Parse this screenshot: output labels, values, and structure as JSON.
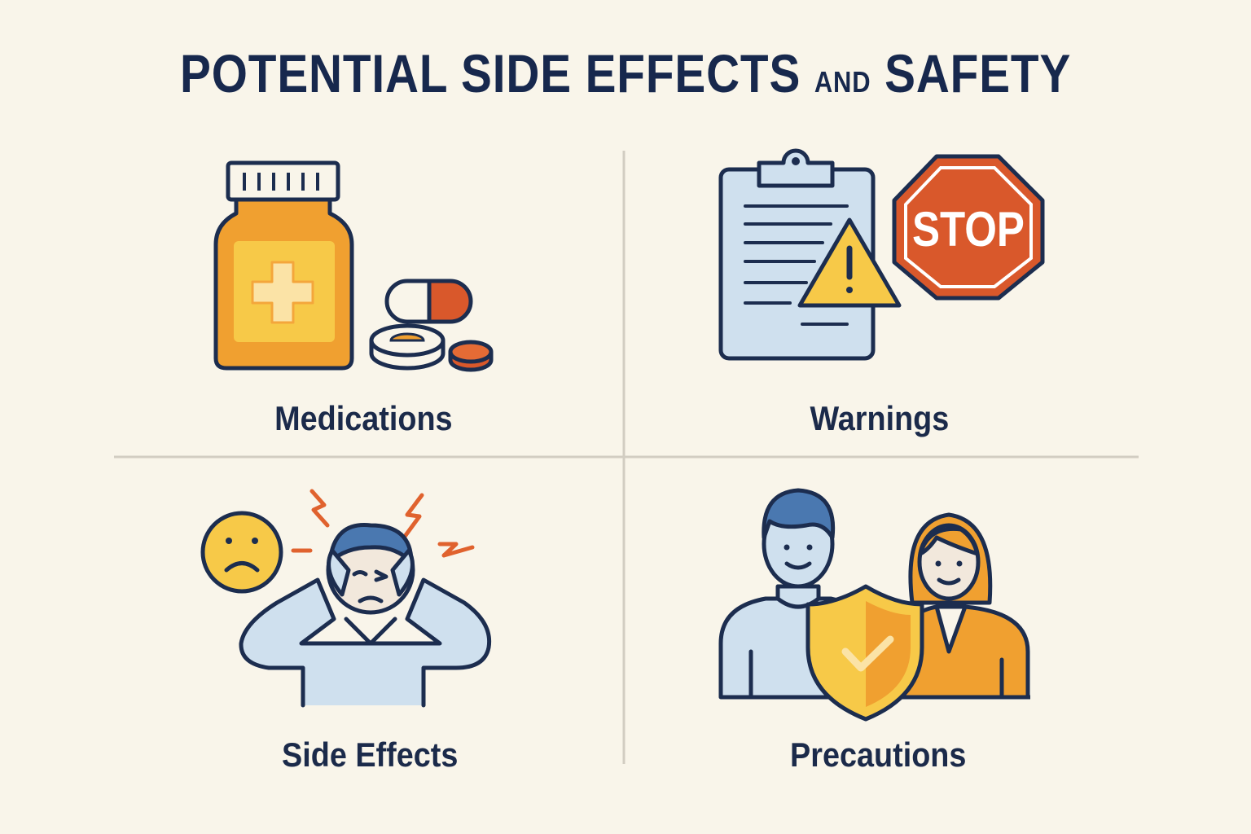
{
  "title": {
    "part1": "POTENTIAL SIDE EFFECTS",
    "connector": "AND",
    "part2": "SAFETY"
  },
  "panels": [
    {
      "label": "Medications",
      "icon": "medicine-bottle-and-pills-icon"
    },
    {
      "label": "Warnings",
      "icon": "clipboard-warning-stop-sign-icon",
      "sign_text": "STOP"
    },
    {
      "label": "Side Effects",
      "icon": "headache-person-sad-face-icon"
    },
    {
      "label": "Precautions",
      "icon": "people-with-shield-icon"
    }
  ],
  "colors": {
    "background": "#f9f5ea",
    "outline": "#1c2d4f",
    "orange": "#f0a030",
    "yellow": "#f7c948",
    "red": "#d9582b",
    "light_blue": "#cfe0ee",
    "blue": "#4a78b0",
    "divider": "#d2cdc2"
  }
}
